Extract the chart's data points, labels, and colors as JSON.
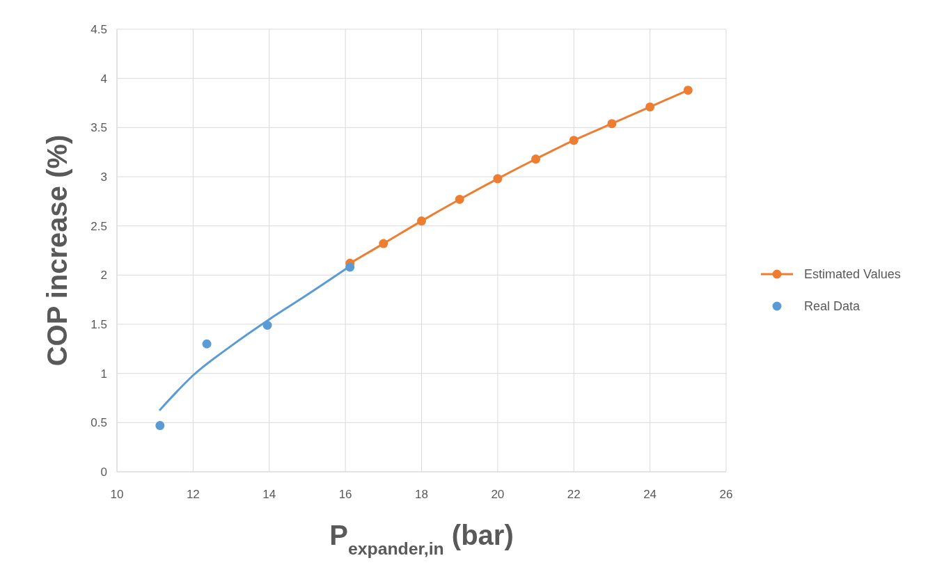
{
  "chart_data": {
    "type": "line",
    "xlabel": "P$_{expander,in}$ (bar)",
    "ylabel": "COP increase (%)",
    "xlim": [
      10,
      26
    ],
    "xticks": [
      10,
      12,
      14,
      16,
      18,
      20,
      22,
      24,
      26
    ],
    "ylim": [
      0,
      4.5
    ],
    "yticks": [
      0,
      0.5,
      1,
      1.5,
      2,
      2.5,
      3,
      3.5,
      4,
      4.5
    ],
    "grid": true,
    "legend": "right",
    "marker": "circle",
    "series": [
      {
        "name": "Estimated Values",
        "color": "#ed7d31",
        "x": [
          16.12,
          17,
          18,
          19,
          20,
          21,
          22,
          23,
          24,
          25
        ],
        "values": [
          2.12,
          2.32,
          2.55,
          2.77,
          2.98,
          3.18,
          3.37,
          3.54,
          3.71,
          3.88
        ]
      },
      {
        "name": "Real Data",
        "type": "scatter",
        "color": "#5b9bd5",
        "x": [
          11.13,
          12.36,
          13.95,
          16.12
        ],
        "values": [
          0.47,
          1.3,
          1.49,
          2.08
        ]
      },
      {
        "type": "line",
        "marker": "none",
        "color": "#5b9bd5",
        "x": [
          11.13,
          12,
          13,
          14,
          15,
          16.12
        ],
        "values": [
          0.63,
          0.98,
          1.28,
          1.55,
          1.8,
          2.09
        ]
      }
    ]
  }
}
